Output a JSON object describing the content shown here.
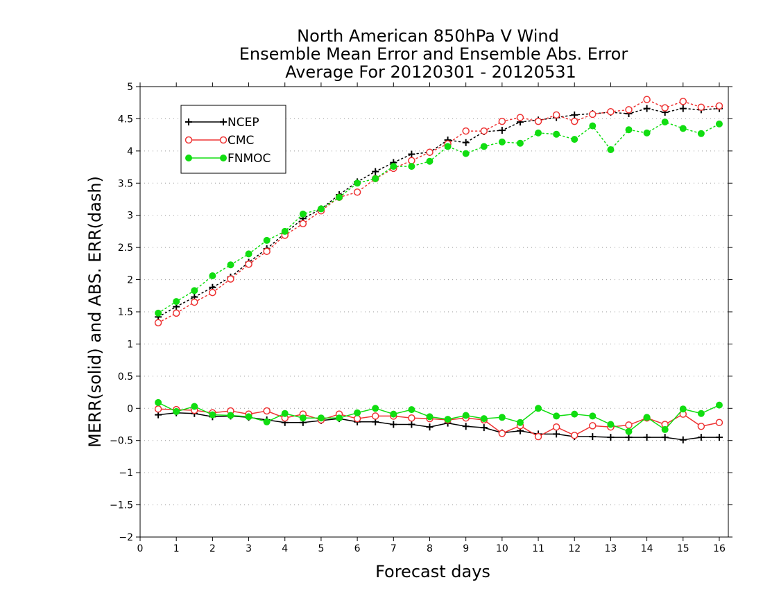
{
  "chart_data": {
    "type": "line",
    "title_lines": [
      "North American 850hPa V Wind",
      "Ensemble Mean Error and Ensemble Abs. Error",
      "Average For 20120301 - 20120531"
    ],
    "xlabel": "Forecast days",
    "ylabel": "MERR(solid) and ABS. ERR(dash)",
    "xlim": [
      0,
      16.25
    ],
    "ylim": [
      -2,
      5
    ],
    "xticks": [
      0,
      1,
      2,
      3,
      4,
      5,
      6,
      7,
      8,
      9,
      10,
      11,
      12,
      13,
      14,
      15,
      16
    ],
    "xtick_labels": [
      "0",
      "1",
      "2",
      "3",
      "4",
      "5",
      "6",
      "7",
      "8",
      "9",
      "10",
      "11",
      "12",
      "13",
      "14",
      "15",
      "16"
    ],
    "yticks": [
      -2,
      -1.5,
      -1,
      -0.5,
      0,
      0.5,
      1,
      1.5,
      2,
      2.5,
      3,
      3.5,
      4,
      4.5,
      5
    ],
    "ytick_labels": [
      "−2",
      "−1.5",
      "−1",
      "−0.5",
      "0",
      "0.5",
      "1",
      "1.5",
      "2",
      "2.5",
      "3",
      "3.5",
      "4",
      "4.5",
      "5"
    ],
    "grid": "horizontal dotted",
    "legend_position": "top-left",
    "x": [
      0.5,
      1,
      1.5,
      2,
      2.5,
      3,
      3.5,
      4,
      4.5,
      5,
      5.5,
      6,
      6.5,
      7,
      7.5,
      8,
      8.5,
      9,
      9.5,
      10,
      10.5,
      11,
      11.5,
      12,
      12.5,
      13,
      13.5,
      14,
      14.5,
      15,
      15.5,
      16
    ],
    "series": [
      {
        "name": "NCEP",
        "color": "#000000",
        "marker": "plus",
        "abs_err": [
          1.42,
          1.58,
          1.73,
          1.88,
          2.04,
          2.27,
          2.48,
          2.72,
          2.95,
          3.1,
          3.32,
          3.52,
          3.68,
          3.82,
          3.95,
          3.98,
          4.17,
          4.13,
          4.3,
          4.32,
          4.45,
          4.48,
          4.52,
          4.56,
          4.58,
          4.6,
          4.58,
          4.66,
          4.6,
          4.66,
          4.64,
          4.66
        ],
        "mean_err": [
          -0.1,
          -0.07,
          -0.08,
          -0.13,
          -0.12,
          -0.14,
          -0.18,
          -0.22,
          -0.22,
          -0.19,
          -0.16,
          -0.21,
          -0.21,
          -0.25,
          -0.25,
          -0.29,
          -0.23,
          -0.28,
          -0.3,
          -0.38,
          -0.35,
          -0.4,
          -0.4,
          -0.44,
          -0.44,
          -0.45,
          -0.45,
          -0.45,
          -0.45,
          -0.49,
          -0.45,
          -0.45
        ]
      },
      {
        "name": "CMC",
        "color": "#ee3333",
        "marker": "open-circle",
        "abs_err": [
          1.33,
          1.48,
          1.65,
          1.8,
          2.01,
          2.24,
          2.44,
          2.69,
          2.87,
          3.07,
          3.28,
          3.36,
          3.57,
          3.73,
          3.85,
          3.98,
          4.11,
          4.31,
          4.31,
          4.46,
          4.52,
          4.46,
          4.56,
          4.46,
          4.57,
          4.61,
          4.64,
          4.8,
          4.67,
          4.77,
          4.68,
          4.7
        ],
        "mean_err": [
          -0.01,
          -0.02,
          -0.03,
          -0.07,
          -0.04,
          -0.09,
          -0.04,
          -0.15,
          -0.09,
          -0.18,
          -0.09,
          -0.16,
          -0.12,
          -0.12,
          -0.15,
          -0.16,
          -0.18,
          -0.15,
          -0.18,
          -0.39,
          -0.27,
          -0.44,
          -0.29,
          -0.42,
          -0.27,
          -0.29,
          -0.26,
          -0.15,
          -0.25,
          -0.09,
          -0.28,
          -0.22
        ]
      },
      {
        "name": "FNMOC",
        "color": "#11dd11",
        "marker": "filled-circle",
        "abs_err": [
          1.48,
          1.66,
          1.83,
          2.06,
          2.23,
          2.4,
          2.61,
          2.75,
          3.02,
          3.1,
          3.28,
          3.5,
          3.57,
          3.76,
          3.76,
          3.84,
          4.07,
          3.96,
          4.07,
          4.14,
          4.12,
          4.28,
          4.26,
          4.18,
          4.39,
          4.02,
          4.33,
          4.28,
          4.45,
          4.35,
          4.27,
          4.42
        ],
        "mean_err": [
          0.09,
          -0.05,
          0.03,
          -0.1,
          -0.11,
          -0.13,
          -0.21,
          -0.08,
          -0.15,
          -0.15,
          -0.15,
          -0.07,
          0.0,
          -0.09,
          -0.02,
          -0.13,
          -0.17,
          -0.11,
          -0.16,
          -0.14,
          -0.22,
          0.0,
          -0.12,
          -0.09,
          -0.12,
          -0.25,
          -0.36,
          -0.14,
          -0.33,
          -0.01,
          -0.08,
          0.05
        ]
      }
    ]
  }
}
